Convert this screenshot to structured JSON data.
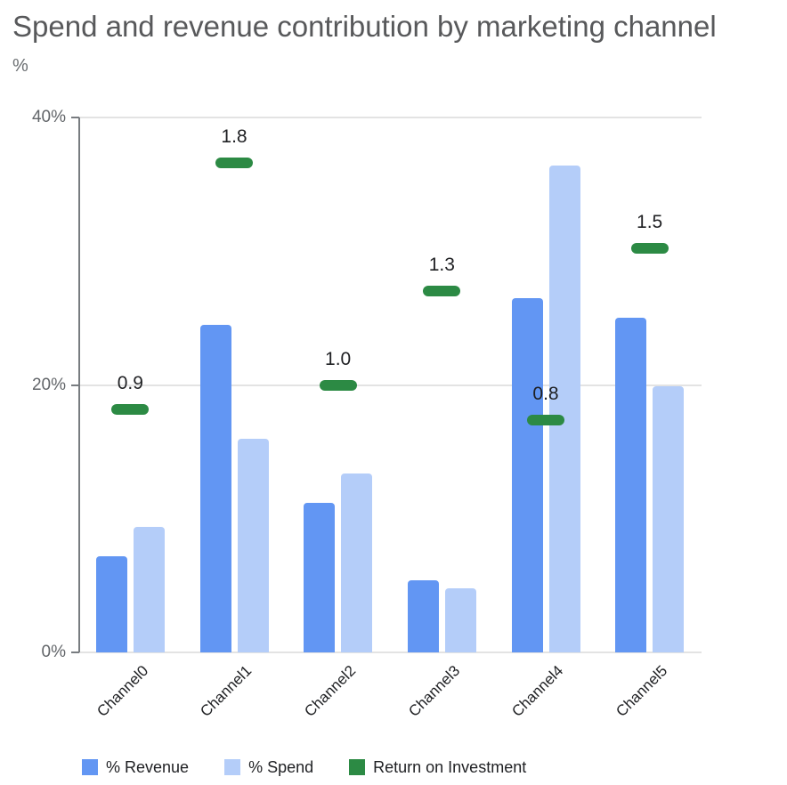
{
  "title": "Spend and revenue contribution by marketing channel",
  "chart_data": {
    "type": "bar",
    "title": "Spend and revenue contribution by marketing channel",
    "ylabel": "%",
    "ylim": [
      0,
      40
    ],
    "grid": true,
    "legend_position": "bottom",
    "categories": [
      "Channel0",
      "Channel1",
      "Channel2",
      "Channel3",
      "Channel4",
      "Channel5"
    ],
    "yticks": [
      {
        "label": "0%",
        "value": 0
      },
      {
        "label": "20%",
        "value": 20
      },
      {
        "label": "40%",
        "value": 40
      }
    ],
    "series": [
      {
        "name": "% Revenue",
        "type": "bar",
        "color": "#6296f3",
        "values": [
          7.2,
          24.5,
          11.2,
          5.4,
          26.5,
          25.0
        ]
      },
      {
        "name": "% Spend",
        "type": "bar",
        "color": "#b4cdf9",
        "values": [
          9.4,
          16.0,
          13.4,
          4.8,
          36.4,
          19.9
        ]
      },
      {
        "name": "Return on Investment",
        "type": "dash_marker",
        "color": "#2c8a44",
        "labels": [
          "0.9",
          "1.8",
          "1.0",
          "1.3",
          "0.8",
          "1.5"
        ],
        "values": [
          0.9,
          1.8,
          1.0,
          1.3,
          0.8,
          1.5
        ],
        "plotted_axis_pct": [
          18.2,
          36.6,
          20.0,
          27.0,
          17.4,
          30.2
        ]
      }
    ]
  }
}
